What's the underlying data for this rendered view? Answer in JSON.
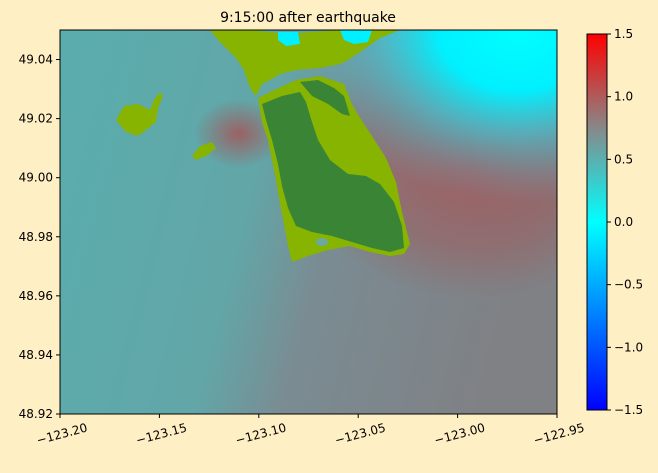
{
  "chart_data": {
    "type": "heatmap",
    "title": "9:15:00 after earthquake",
    "xlabel": "",
    "ylabel": "",
    "xlim": [
      -123.2,
      -122.95
    ],
    "ylim": [
      48.92,
      49.05
    ],
    "x_ticks": [
      "−123.20",
      "−123.15",
      "−123.10",
      "−123.05",
      "−123.00",
      "−122.95"
    ],
    "x_tick_values": [
      -123.2,
      -123.15,
      -123.1,
      -123.05,
      -123.0,
      -122.95
    ],
    "y_ticks": [
      "48.92",
      "48.94",
      "48.96",
      "48.98",
      "49.00",
      "49.02",
      "49.04"
    ],
    "y_tick_values": [
      48.92,
      48.94,
      48.96,
      48.98,
      49.0,
      49.02,
      49.04
    ],
    "colorbar": {
      "range": [
        -1.5,
        1.5
      ],
      "ticks": [
        "−1.5",
        "−1.0",
        "−0.5",
        "0.0",
        "0.5",
        "1.0",
        "1.5"
      ],
      "tick_values": [
        -1.5,
        -1.0,
        -0.5,
        0.0,
        0.5,
        1.0,
        1.5
      ],
      "colors": [
        "#0000ff",
        "#00ffff",
        "#888888",
        "#ff0000"
      ]
    },
    "background_color": "#ffefc5",
    "land_colors": {
      "upland": "#3a8535",
      "lowland": "#87b400"
    },
    "water_colors": {
      "west": "#5aadad",
      "east": "#9b5f60",
      "north_bay": "#00f0ff"
    }
  }
}
